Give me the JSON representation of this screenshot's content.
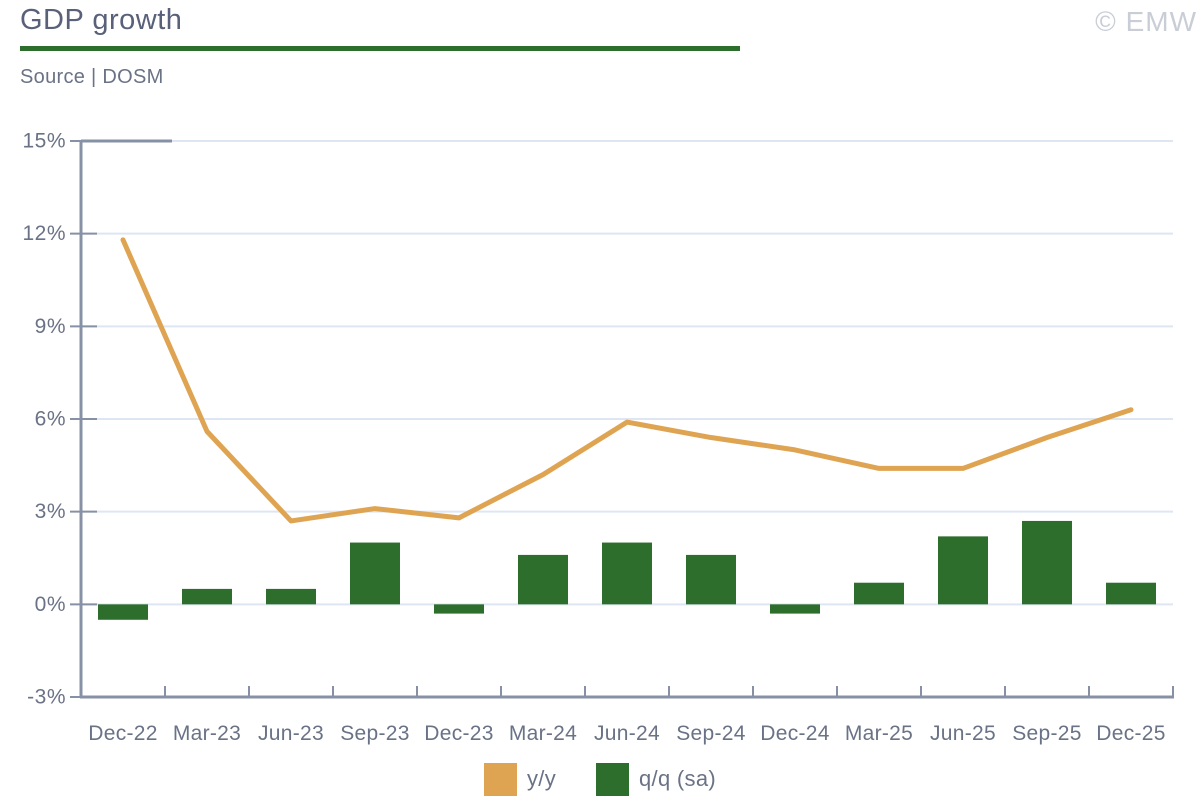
{
  "header": {
    "title": "GDP growth",
    "source": "Source | DOSM",
    "watermark": "© EMW"
  },
  "colors": {
    "orange": "#DFA452",
    "green": "#2D6E2D",
    "gridline": "#DDE6F2",
    "axis": "#8791A5",
    "tick_text": "#6A7286",
    "title_text": "#59617A",
    "watermark_text": "#C9CDD6"
  },
  "legend": {
    "position": "bottom-center",
    "items": [
      {
        "label": "y/y",
        "color": "#DFA452"
      },
      {
        "label": "q/q (sa)",
        "color": "#2D6E2D"
      }
    ]
  },
  "chart_data": {
    "type": "combo-line-bar",
    "title": "GDP growth",
    "source": "Source | DOSM",
    "categories": [
      "Dec-22",
      "Mar-23",
      "Jun-23",
      "Sep-23",
      "Dec-23",
      "Mar-24",
      "Jun-24",
      "Sep-24",
      "Dec-24",
      "Mar-25",
      "Jun-25",
      "Sep-25",
      "Dec-25"
    ],
    "series": [
      {
        "name": "y/y",
        "type": "line",
        "color": "#DFA452",
        "values": [
          11.8,
          5.6,
          2.7,
          3.1,
          2.8,
          4.2,
          5.9,
          5.4,
          5.0,
          4.4,
          4.4,
          5.4,
          6.3
        ]
      },
      {
        "name": "q/q (sa)",
        "type": "bar",
        "color": "#2D6E2D",
        "values": [
          -0.5,
          0.5,
          0.5,
          2.0,
          -0.3,
          1.6,
          2.0,
          1.6,
          -0.3,
          0.7,
          2.2,
          2.7,
          0.7
        ]
      }
    ],
    "ylim": [
      -3,
      15
    ],
    "yticks": [
      15,
      12,
      9,
      6,
      3,
      0,
      -3
    ],
    "ytick_labels": [
      "15%",
      "12%",
      "9%",
      "6%",
      "3%",
      "0%",
      "-3%"
    ],
    "grid": "horizontal"
  }
}
